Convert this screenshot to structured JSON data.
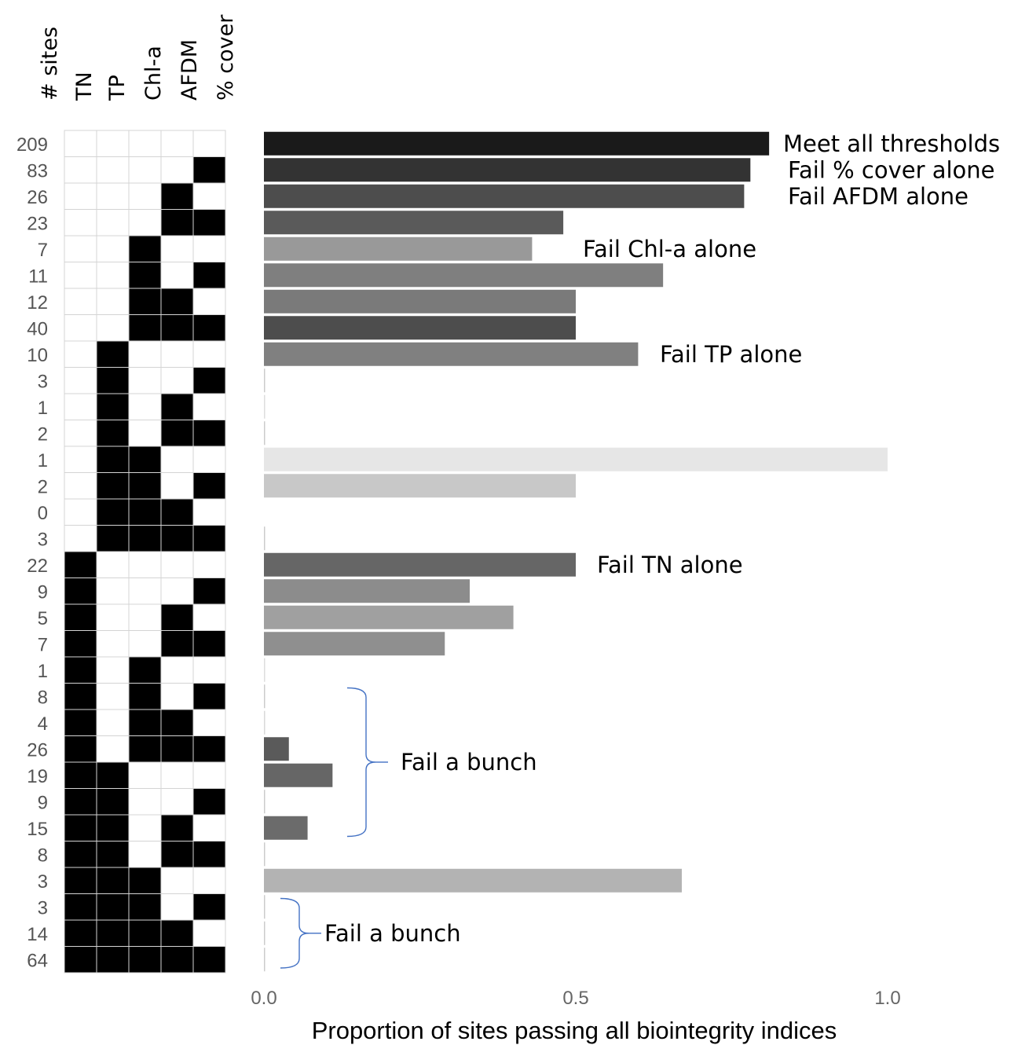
{
  "chart_data": {
    "type": "bar",
    "orientation": "horizontal",
    "xlabel": "Proportion of sites passing all biointegrity indices",
    "xlim": [
      0,
      1
    ],
    "xticks": [
      0.0,
      0.5,
      1.0
    ],
    "xtick_labels": [
      "0.0",
      "0.5",
      "1.0"
    ],
    "grid": false,
    "matrix_columns": [
      "# sites",
      "TN",
      "TP",
      "Chl-a",
      "AFDM",
      "% cover"
    ],
    "rows": [
      {
        "sites": "209",
        "fail": [
          0,
          0,
          0,
          0,
          0
        ],
        "value": 0.81,
        "color": "#1a1a1a"
      },
      {
        "sites": "83",
        "fail": [
          0,
          0,
          0,
          0,
          1
        ],
        "value": 0.78,
        "color": "#333333"
      },
      {
        "sites": "26",
        "fail": [
          0,
          0,
          0,
          1,
          0
        ],
        "value": 0.77,
        "color": "#4d4d4d"
      },
      {
        "sites": "23",
        "fail": [
          0,
          0,
          0,
          1,
          1
        ],
        "value": 0.48,
        "color": "#5a5a5a"
      },
      {
        "sites": "7",
        "fail": [
          0,
          0,
          1,
          0,
          0
        ],
        "value": 0.43,
        "color": "#999999"
      },
      {
        "sites": "11",
        "fail": [
          0,
          0,
          1,
          0,
          1
        ],
        "value": 0.64,
        "color": "#7f7f7f"
      },
      {
        "sites": "12",
        "fail": [
          0,
          0,
          1,
          1,
          0
        ],
        "value": 0.5,
        "color": "#7a7a7a"
      },
      {
        "sites": "40",
        "fail": [
          0,
          0,
          1,
          1,
          1
        ],
        "value": 0.5,
        "color": "#4d4d4d"
      },
      {
        "sites": "10",
        "fail": [
          0,
          1,
          0,
          0,
          0
        ],
        "value": 0.6,
        "color": "#808080"
      },
      {
        "sites": "3",
        "fail": [
          0,
          1,
          0,
          0,
          1
        ],
        "value": 0.0,
        "color": "#cccccc"
      },
      {
        "sites": "1",
        "fail": [
          0,
          1,
          0,
          1,
          0
        ],
        "value": 0.0,
        "color": "#dddddd"
      },
      {
        "sites": "2",
        "fail": [
          0,
          1,
          0,
          1,
          1
        ],
        "value": 0.0,
        "color": "#cccccc"
      },
      {
        "sites": "1",
        "fail": [
          0,
          1,
          1,
          0,
          0
        ],
        "value": 1.0,
        "color": "#e6e6e6"
      },
      {
        "sites": "2",
        "fail": [
          0,
          1,
          1,
          0,
          1
        ],
        "value": 0.5,
        "color": "#c8c8c8"
      },
      {
        "sites": "0",
        "fail": [
          0,
          1,
          1,
          1,
          0
        ],
        "value": 0.0,
        "color": "#ffffff"
      },
      {
        "sites": "3",
        "fail": [
          0,
          1,
          1,
          1,
          1
        ],
        "value": 0.0,
        "color": "#cccccc"
      },
      {
        "sites": "22",
        "fail": [
          1,
          0,
          0,
          0,
          0
        ],
        "value": 0.5,
        "color": "#666666"
      },
      {
        "sites": "9",
        "fail": [
          1,
          0,
          0,
          0,
          1
        ],
        "value": 0.33,
        "color": "#8c8c8c"
      },
      {
        "sites": "5",
        "fail": [
          1,
          0,
          0,
          1,
          0
        ],
        "value": 0.4,
        "color": "#a0a0a0"
      },
      {
        "sites": "7",
        "fail": [
          1,
          0,
          0,
          1,
          1
        ],
        "value": 0.29,
        "color": "#8f8f8f"
      },
      {
        "sites": "1",
        "fail": [
          1,
          0,
          1,
          0,
          0
        ],
        "value": 0.0,
        "color": "#dddddd"
      },
      {
        "sites": "8",
        "fail": [
          1,
          0,
          1,
          0,
          1
        ],
        "value": 0.0,
        "color": "#cccccc"
      },
      {
        "sites": "4",
        "fail": [
          1,
          0,
          1,
          1,
          0
        ],
        "value": 0.0,
        "color": "#d9d9d9"
      },
      {
        "sites": "26",
        "fail": [
          1,
          0,
          1,
          1,
          1
        ],
        "value": 0.04,
        "color": "#5a5a5a"
      },
      {
        "sites": "19",
        "fail": [
          1,
          1,
          0,
          0,
          0
        ],
        "value": 0.11,
        "color": "#666666"
      },
      {
        "sites": "9",
        "fail": [
          1,
          1,
          0,
          0,
          1
        ],
        "value": 0.0,
        "color": "#cccccc"
      },
      {
        "sites": "15",
        "fail": [
          1,
          1,
          0,
          1,
          0
        ],
        "value": 0.07,
        "color": "#6b6b6b"
      },
      {
        "sites": "8",
        "fail": [
          1,
          1,
          0,
          1,
          1
        ],
        "value": 0.0,
        "color": "#cccccc"
      },
      {
        "sites": "3",
        "fail": [
          1,
          1,
          1,
          0,
          0
        ],
        "value": 0.67,
        "color": "#b3b3b3"
      },
      {
        "sites": "3",
        "fail": [
          1,
          1,
          1,
          0,
          1
        ],
        "value": 0.0,
        "color": "#cccccc"
      },
      {
        "sites": "14",
        "fail": [
          1,
          1,
          1,
          1,
          0
        ],
        "value": 0.0,
        "color": "#cccccc"
      },
      {
        "sites": "64",
        "fail": [
          1,
          1,
          1,
          1,
          1
        ],
        "value": 0.0,
        "color": "#cccccc"
      }
    ],
    "annotations": [
      {
        "text": "Meet all thresholds",
        "row": 0
      },
      {
        "text": "Fail % cover alone",
        "row": 1
      },
      {
        "text": "Fail AFDM alone",
        "row": 2
      },
      {
        "text": "Fail Chl-a alone",
        "row": 4
      },
      {
        "text": "Fail TP alone",
        "row": 8
      },
      {
        "text": "Fail TN alone",
        "row": 16
      },
      {
        "text": "Fail a bunch",
        "row_range": [
          21,
          26
        ]
      },
      {
        "text": "Fail a bunch",
        "row_range": [
          29,
          31
        ]
      }
    ],
    "bracket_color": "#4472c4"
  }
}
